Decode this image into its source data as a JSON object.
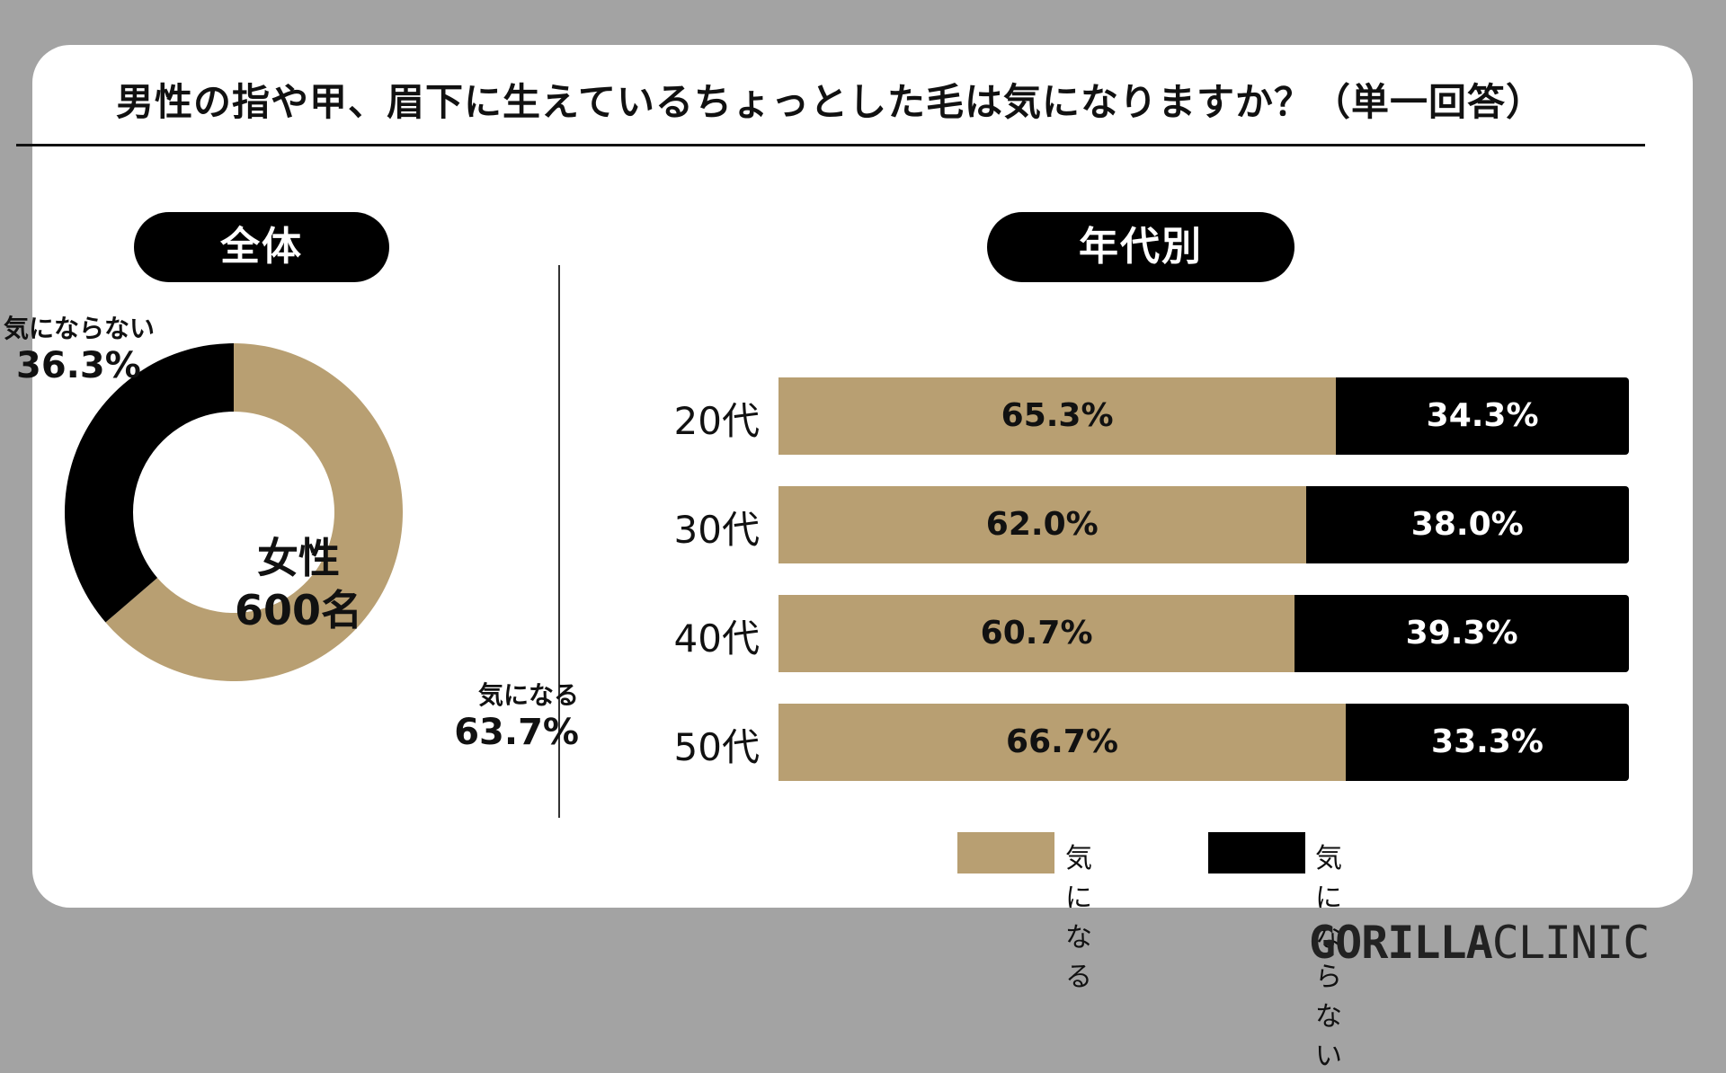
{
  "title": "男性の指や甲、眉下に生えているちょっとした毛は気になりますか？（単一回答）",
  "brand": {
    "part1": "GORILLA",
    "part2": "CLINIC"
  },
  "colors": {
    "yes": "#b89f72",
    "no": "#000000"
  },
  "chart_data": [
    {
      "type": "pie",
      "panel_label": "全体",
      "center_label": [
        "女性",
        "600名"
      ],
      "slices": [
        {
          "name": "気になる",
          "value": 63.7,
          "value_label": "63.7%"
        },
        {
          "name": "気にならない",
          "value": 36.3,
          "value_label": "36.3%"
        }
      ]
    },
    {
      "type": "bar",
      "orientation": "horizontal-stacked",
      "panel_label": "年代別",
      "categories": [
        "20代",
        "30代",
        "40代",
        "50代"
      ],
      "series": [
        {
          "name": "気になる",
          "values": [
            65.3,
            62.0,
            60.7,
            66.7
          ],
          "labels": [
            "65.3%",
            "62.0%",
            "60.7%",
            "66.7%"
          ]
        },
        {
          "name": "気にならない",
          "values": [
            34.3,
            38.0,
            39.3,
            33.3
          ],
          "labels": [
            "34.3%",
            "38.0%",
            "39.3%",
            "33.3%"
          ]
        }
      ],
      "legend": [
        "気になる",
        "気にならない"
      ],
      "legend_position": "bottom"
    }
  ]
}
